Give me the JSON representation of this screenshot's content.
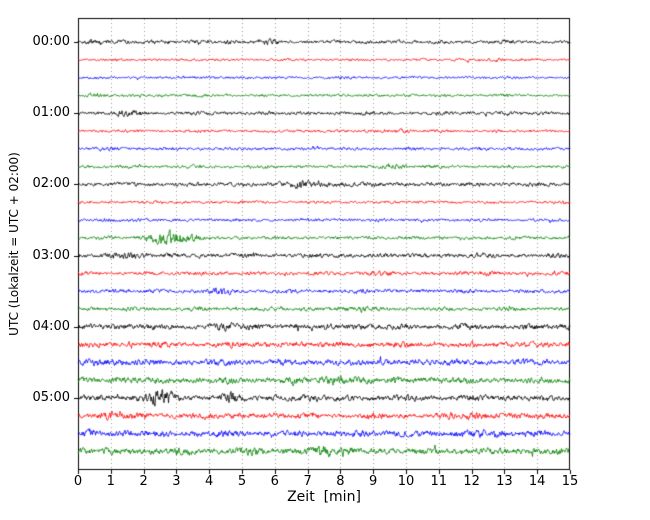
{
  "figure": {
    "xlabel": "Zeit  [min]",
    "ylabel": "UTC (Lokalzeit = UTC + 02:00)"
  },
  "chart_data": {
    "type": "line",
    "title": "",
    "xlabel": "Zeit [min]",
    "ylabel": "UTC (Lokalzeit = UTC + 02:00)",
    "xlim": [
      0,
      15
    ],
    "minutes_per_line": 15,
    "grid": "vertical-dotted",
    "grid_color": "#999999",
    "x_ticks": [
      "0",
      "1",
      "2",
      "3",
      "4",
      "5",
      "6",
      "7",
      "8",
      "9",
      "10",
      "11",
      "12",
      "13",
      "14",
      "15"
    ],
    "y_ticks": [
      "00:00",
      "01:00",
      "02:00",
      "03:00",
      "04:00",
      "05:00"
    ],
    "trace_color_cycle": [
      "#000000",
      "#ff0000",
      "#0000ff",
      "#008000"
    ],
    "traces": [
      {
        "start": "00:00",
        "label": "00:00",
        "color": "#000000",
        "amp": 1.3,
        "bursts": [
          {
            "c": 0.6,
            "w": 0.25,
            "a": 0.8
          },
          {
            "c": 4.6,
            "w": 0.15,
            "a": 1.1
          },
          {
            "c": 6.0,
            "w": 0.2,
            "a": 0.9
          }
        ]
      },
      {
        "start": "00:15",
        "label": "",
        "color": "#ff0000",
        "amp": 0.9,
        "bursts": [
          {
            "c": 12.8,
            "w": 0.2,
            "a": 0.7
          }
        ]
      },
      {
        "start": "00:30",
        "label": "",
        "color": "#0000ff",
        "amp": 0.9,
        "bursts": [
          {
            "c": 3.2,
            "w": 0.2,
            "a": 0.5
          }
        ]
      },
      {
        "start": "00:45",
        "label": "",
        "color": "#008000",
        "amp": 1.0,
        "bursts": [
          {
            "c": 0.6,
            "w": 0.2,
            "a": 0.8
          }
        ]
      },
      {
        "start": "01:00",
        "label": "01:00",
        "color": "#000000",
        "amp": 1.3,
        "bursts": [
          {
            "c": 1.6,
            "w": 0.3,
            "a": 1.1
          }
        ]
      },
      {
        "start": "01:15",
        "label": "",
        "color": "#ff0000",
        "amp": 1.0,
        "bursts": [
          {
            "c": 9.9,
            "w": 0.3,
            "a": 0.9
          }
        ]
      },
      {
        "start": "01:30",
        "label": "",
        "color": "#0000ff",
        "amp": 1.1,
        "bursts": [
          {
            "c": 1.2,
            "w": 0.2,
            "a": 0.6
          }
        ]
      },
      {
        "start": "01:45",
        "label": "",
        "color": "#008000",
        "amp": 1.1,
        "bursts": [
          {
            "c": 9.6,
            "w": 0.25,
            "a": 1.3
          }
        ]
      },
      {
        "start": "02:00",
        "label": "02:00",
        "color": "#000000",
        "amp": 1.5,
        "bursts": [
          {
            "c": 6.8,
            "w": 0.6,
            "a": 1.1
          },
          {
            "c": 7.8,
            "w": 0.3,
            "a": 0.9
          }
        ]
      },
      {
        "start": "02:15",
        "label": "",
        "color": "#ff0000",
        "amp": 1.0,
        "bursts": []
      },
      {
        "start": "02:30",
        "label": "",
        "color": "#0000ff",
        "amp": 1.1,
        "bursts": [
          {
            "c": 1.1,
            "w": 0.2,
            "a": 0.5
          }
        ]
      },
      {
        "start": "02:45",
        "label": "",
        "color": "#008000",
        "amp": 1.2,
        "bursts": [
          {
            "c": 2.4,
            "w": 0.3,
            "a": 2.2
          },
          {
            "c": 3.0,
            "w": 0.4,
            "a": 2.4
          },
          {
            "c": 3.5,
            "w": 0.2,
            "a": 1.4
          }
        ]
      },
      {
        "start": "03:00",
        "label": "03:00",
        "color": "#000000",
        "amp": 1.6,
        "bursts": [
          {
            "c": 1.4,
            "w": 0.3,
            "a": 1.1
          }
        ]
      },
      {
        "start": "03:15",
        "label": "",
        "color": "#ff0000",
        "amp": 1.3,
        "bursts": [
          {
            "c": 3.6,
            "w": 0.2,
            "a": 0.9
          },
          {
            "c": 9.0,
            "w": 0.3,
            "a": 0.8
          },
          {
            "c": 12.4,
            "w": 0.2,
            "a": 0.7
          }
        ]
      },
      {
        "start": "03:30",
        "label": "",
        "color": "#0000ff",
        "amp": 1.4,
        "bursts": [
          {
            "c": 4.2,
            "w": 0.3,
            "a": 1.1
          }
        ]
      },
      {
        "start": "03:45",
        "label": "",
        "color": "#008000",
        "amp": 1.4,
        "bursts": [
          {
            "c": 8.6,
            "w": 0.3,
            "a": 1.1
          }
        ]
      },
      {
        "start": "04:00",
        "label": "04:00",
        "color": "#000000",
        "amp": 2.0,
        "bursts": [
          {
            "c": 5.0,
            "w": 0.5,
            "a": 0.7
          }
        ]
      },
      {
        "start": "04:15",
        "label": "",
        "color": "#ff0000",
        "amp": 2.0,
        "bursts": []
      },
      {
        "start": "04:30",
        "label": "",
        "color": "#0000ff",
        "amp": 2.2,
        "bursts": [
          {
            "c": 0.5,
            "w": 0.3,
            "a": 0.9
          }
        ]
      },
      {
        "start": "04:45",
        "label": "",
        "color": "#008000",
        "amp": 2.2,
        "bursts": [
          {
            "c": 7.9,
            "w": 0.3,
            "a": 1.7
          }
        ]
      },
      {
        "start": "05:00",
        "label": "05:00",
        "color": "#000000",
        "amp": 2.2,
        "bursts": [
          {
            "c": 2.3,
            "w": 0.25,
            "a": 4.3
          },
          {
            "c": 2.7,
            "w": 0.15,
            "a": 2.8
          },
          {
            "c": 4.6,
            "w": 0.2,
            "a": 1.8
          }
        ]
      },
      {
        "start": "05:15",
        "label": "",
        "color": "#ff0000",
        "amp": 2.0,
        "bursts": [
          {
            "c": 1.0,
            "w": 0.2,
            "a": 2.8
          },
          {
            "c": 12.1,
            "w": 0.3,
            "a": 1.1
          }
        ]
      },
      {
        "start": "05:30",
        "label": "",
        "color": "#0000ff",
        "amp": 2.2,
        "bursts": [
          {
            "c": 0.3,
            "w": 0.2,
            "a": 1.1
          },
          {
            "c": 12.6,
            "w": 0.3,
            "a": 1.9
          }
        ]
      },
      {
        "start": "05:45",
        "label": "",
        "color": "#008000",
        "amp": 2.4,
        "bursts": [
          {
            "c": 7.5,
            "w": 0.4,
            "a": 1.1
          }
        ]
      }
    ]
  }
}
